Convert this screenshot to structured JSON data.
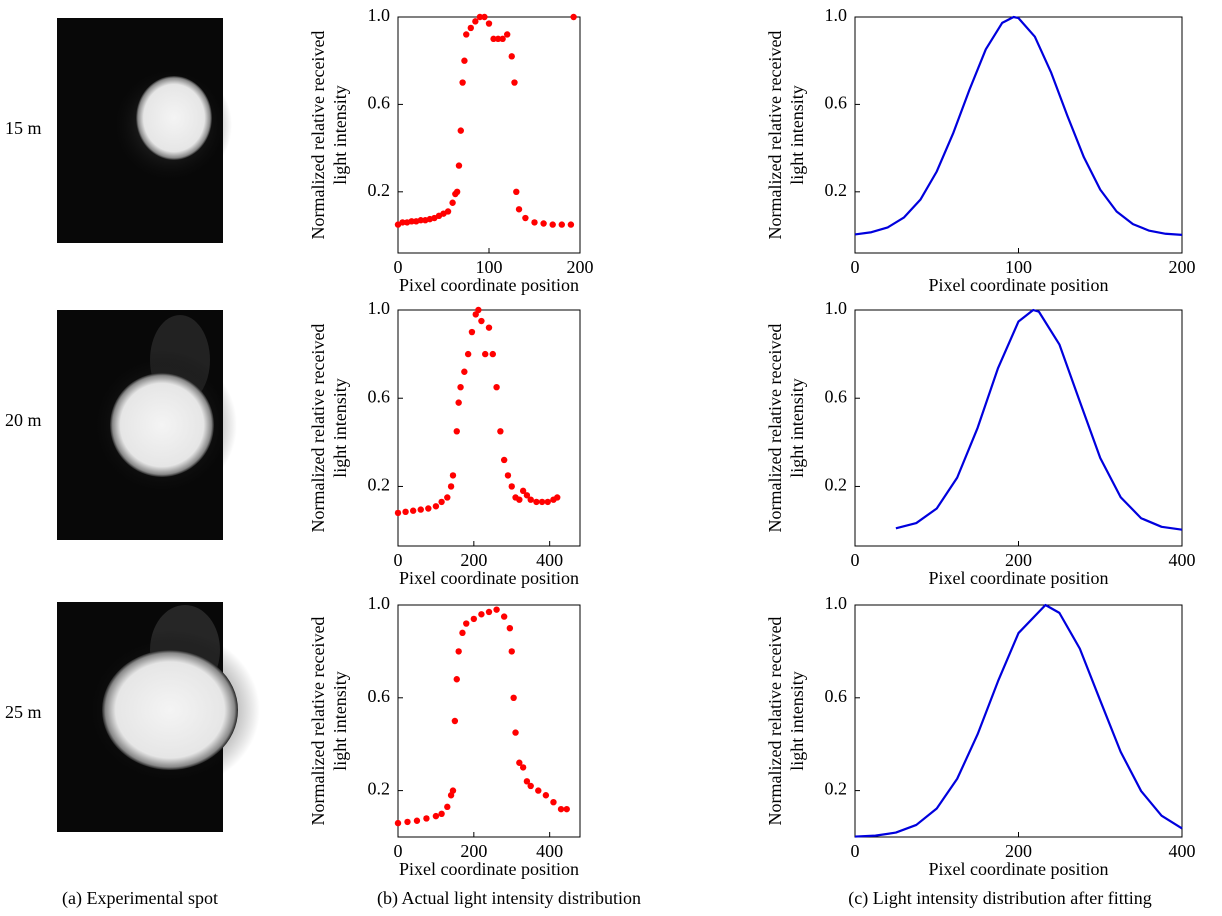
{
  "rows": [
    "15 m",
    "20 m",
    "25 m"
  ],
  "captions": [
    "(a) Experimental spot",
    "(b) Actual light intensity distribution",
    "(c) Light intensity distribution after fitting"
  ],
  "chart_data": [
    {
      "type": "scatter",
      "color": "#ff0000",
      "xlabel": "Pixel coordinate position",
      "ylabel": [
        "Normalized relative received",
        "light intensity"
      ],
      "xlim": [
        0,
        200
      ],
      "xticks": [
        0,
        100,
        200
      ],
      "ylim": [
        -0.08,
        1.0
      ],
      "yticks": [
        0.2,
        0.6,
        {
          "value": 1.0,
          "label": "1.0"
        }
      ],
      "x": [
        0,
        5,
        10,
        15,
        20,
        25,
        30,
        35,
        40,
        45,
        50,
        55,
        60,
        63,
        65,
        67,
        69,
        71,
        73,
        75,
        80,
        85,
        90,
        95,
        100,
        105,
        110,
        115,
        120,
        125,
        128,
        130,
        133,
        140,
        150,
        160,
        170,
        180,
        190,
        193
      ],
      "values": [
        0.05,
        0.06,
        0.06,
        0.065,
        0.065,
        0.07,
        0.07,
        0.075,
        0.08,
        0.09,
        0.1,
        0.11,
        0.15,
        0.19,
        0.2,
        0.32,
        0.48,
        0.7,
        0.8,
        0.92,
        0.95,
        0.98,
        1.0,
        1.0,
        0.97,
        0.9,
        0.9,
        0.9,
        0.92,
        0.82,
        0.7,
        0.2,
        0.12,
        0.08,
        0.06,
        0.055,
        0.05,
        0.05,
        0.05,
        1.0
      ]
    },
    {
      "type": "line",
      "color": "#0000dd",
      "xlabel": "Pixel coordinate position",
      "ylabel": [
        "Normalized relative received",
        "light intensity"
      ],
      "xlim": [
        0,
        200
      ],
      "xticks": [
        0,
        100,
        200
      ],
      "ylim": [
        -0.08,
        1.0
      ],
      "yticks": [
        0.2,
        0.6,
        {
          "value": 1.0,
          "label": "1.0"
        }
      ],
      "x": [
        0,
        10,
        20,
        30,
        40,
        50,
        60,
        70,
        80,
        90,
        97,
        100,
        110,
        120,
        130,
        140,
        150,
        160,
        170,
        180,
        190,
        200
      ],
      "values": [
        0.005,
        0.015,
        0.037,
        0.083,
        0.164,
        0.293,
        0.467,
        0.667,
        0.852,
        0.973,
        1.0,
        0.995,
        0.91,
        0.745,
        0.546,
        0.358,
        0.21,
        0.11,
        0.052,
        0.022,
        0.008,
        0.003
      ]
    },
    {
      "type": "scatter",
      "color": "#ff0000",
      "xlabel": "Pixel coordinate position",
      "ylabel": [
        "Normalized relative received",
        "light intensity"
      ],
      "xlim": [
        0,
        480
      ],
      "xticks": [
        0,
        200,
        400
      ],
      "ylim": [
        -0.07,
        1.0
      ],
      "yticks": [
        0.2,
        0.6,
        {
          "value": 1.0,
          "label": "1.0"
        }
      ],
      "x": [
        0,
        20,
        40,
        60,
        80,
        100,
        115,
        130,
        140,
        145,
        155,
        160,
        165,
        175,
        185,
        195,
        205,
        212,
        220,
        230,
        240,
        250,
        260,
        270,
        280,
        290,
        300,
        310,
        320,
        330,
        340,
        350,
        365,
        380,
        395,
        410,
        420
      ],
      "values": [
        0.08,
        0.085,
        0.09,
        0.095,
        0.1,
        0.11,
        0.13,
        0.15,
        0.2,
        0.25,
        0.45,
        0.58,
        0.65,
        0.72,
        0.8,
        0.9,
        0.98,
        1.0,
        0.95,
        0.8,
        0.92,
        0.8,
        0.65,
        0.45,
        0.32,
        0.25,
        0.2,
        0.15,
        0.14,
        0.18,
        0.16,
        0.14,
        0.13,
        0.13,
        0.13,
        0.14,
        0.15
      ]
    },
    {
      "type": "line",
      "color": "#0000dd",
      "xlabel": "Pixel coordinate position",
      "ylabel": [
        "Normalized relative received",
        "light intensity"
      ],
      "xlim": [
        0,
        400
      ],
      "xticks": [
        0,
        200,
        400
      ],
      "ylim": [
        -0.07,
        1.0
      ],
      "yticks": [
        0.2,
        0.6,
        {
          "value": 1.0,
          "label": "1.0"
        }
      ],
      "x": [
        50,
        75,
        100,
        125,
        150,
        175,
        200,
        218,
        225,
        250,
        275,
        300,
        325,
        350,
        375,
        400
      ],
      "values": [
        0.01,
        0.034,
        0.1,
        0.24,
        0.466,
        0.737,
        0.948,
        1.0,
        0.992,
        0.844,
        0.585,
        0.329,
        0.151,
        0.056,
        0.017,
        0.004
      ]
    },
    {
      "type": "scatter",
      "color": "#ff0000",
      "xlabel": "Pixel coordinate position",
      "ylabel": [
        "Normalized relative received",
        "light intensity"
      ],
      "xlim": [
        0,
        480
      ],
      "xticks": [
        0,
        200,
        400
      ],
      "ylim": [
        0.0,
        1.0
      ],
      "yticks": [
        0.2,
        0.6,
        {
          "value": 1.0,
          "label": "1.0"
        }
      ],
      "x": [
        0,
        25,
        50,
        75,
        100,
        115,
        130,
        140,
        145,
        150,
        155,
        160,
        170,
        180,
        200,
        220,
        240,
        260,
        280,
        295,
        300,
        305,
        310,
        320,
        330,
        340,
        350,
        370,
        390,
        410,
        430,
        445
      ],
      "values": [
        0.06,
        0.065,
        0.07,
        0.08,
        0.09,
        0.1,
        0.13,
        0.18,
        0.2,
        0.5,
        0.68,
        0.8,
        0.88,
        0.92,
        0.94,
        0.96,
        0.97,
        0.98,
        0.95,
        0.9,
        0.8,
        0.6,
        0.45,
        0.32,
        0.3,
        0.24,
        0.22,
        0.2,
        0.18,
        0.15,
        0.12,
        0.12
      ]
    },
    {
      "type": "line",
      "color": "#0000dd",
      "xlabel": "Pixel coordinate position",
      "ylabel": [
        "Normalized relative received",
        "light intensity"
      ],
      "xlim": [
        0,
        400
      ],
      "xticks": [
        0,
        200,
        400
      ],
      "ylim": [
        0.0,
        1.0
      ],
      "yticks": [
        0.2,
        0.6,
        {
          "value": 1.0,
          "label": "1.0"
        }
      ],
      "x": [
        0,
        25,
        50,
        75,
        100,
        125,
        150,
        175,
        200,
        233,
        250,
        275,
        300,
        325,
        350,
        375,
        400
      ],
      "values": [
        0.002,
        0.006,
        0.019,
        0.052,
        0.123,
        0.251,
        0.443,
        0.672,
        0.879,
        1.0,
        0.966,
        0.812,
        0.588,
        0.367,
        0.198,
        0.092,
        0.037
      ]
    }
  ]
}
